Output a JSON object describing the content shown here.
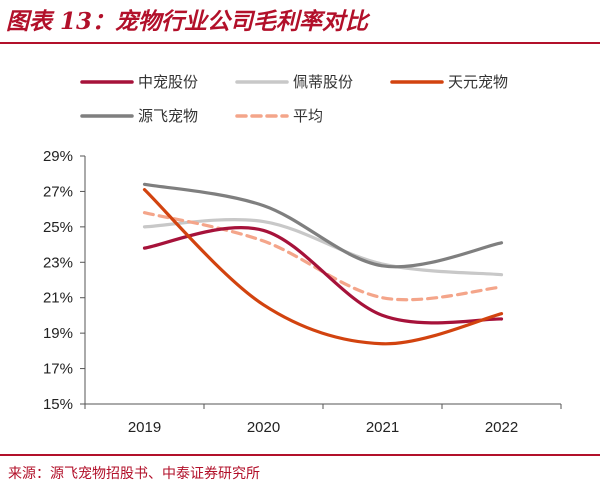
{
  "figure": {
    "title": "图表 13：宠物行业公司毛利率对比",
    "source": "来源：源飞宠物招股书、中泰证券研究所"
  },
  "chart_data": {
    "type": "line",
    "x": [
      "2019",
      "2020",
      "2021",
      "2022"
    ],
    "ylim": [
      15,
      29
    ],
    "yticks": [
      15,
      17,
      19,
      21,
      23,
      25,
      27,
      29
    ],
    "ytick_labels": [
      "15%",
      "17%",
      "19%",
      "21%",
      "23%",
      "25%",
      "27%",
      "29%"
    ],
    "ylabel_unit": "%",
    "grid": false,
    "legend_placement": "top",
    "smooth": true,
    "series": [
      {
        "name": "中宠股份",
        "values": [
          23.8,
          24.8,
          20.0,
          19.8
        ],
        "color": "#a6123a",
        "style": "solid"
      },
      {
        "name": "佩蒂股份",
        "values": [
          25.0,
          25.3,
          22.9,
          22.3
        ],
        "color": "#c8c8c8",
        "style": "solid"
      },
      {
        "name": "天元宠物",
        "values": [
          27.1,
          20.6,
          18.4,
          20.1
        ],
        "color": "#d2430f",
        "style": "solid"
      },
      {
        "name": "源飞宠物",
        "values": [
          27.4,
          26.2,
          22.8,
          24.1
        ],
        "color": "#7f7f7f",
        "style": "solid"
      },
      {
        "name": "平均",
        "values": [
          25.8,
          24.2,
          21.0,
          21.6
        ],
        "color": "#f4a58a",
        "style": "dashed"
      }
    ]
  }
}
